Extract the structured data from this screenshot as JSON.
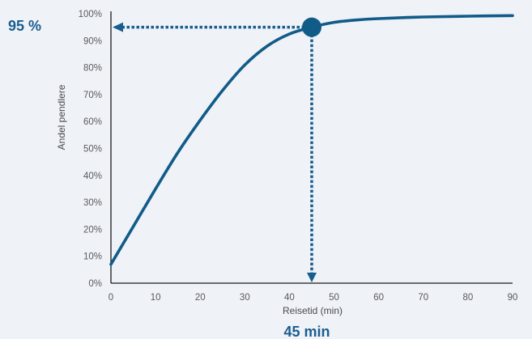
{
  "chart_data": {
    "type": "line",
    "xlabel": "Reisetid (min)",
    "ylabel": "Andel pendlere",
    "xlim": [
      0,
      90
    ],
    "ylim": [
      0,
      100
    ],
    "x_ticks": [
      "0",
      "10",
      "20",
      "30",
      "40",
      "50",
      "60",
      "70",
      "80",
      "90"
    ],
    "y_ticks": [
      "0%",
      "10%",
      "20%",
      "30%",
      "40%",
      "50%",
      "60%",
      "70%",
      "80%",
      "90%",
      "100%"
    ],
    "series": [
      {
        "x": [
          0,
          5,
          10,
          15,
          20,
          25,
          30,
          35,
          40,
          45,
          50,
          55,
          60,
          70,
          80,
          90
        ],
        "y": [
          7,
          21,
          35,
          48.5,
          60.5,
          71.5,
          81,
          88,
          92.5,
          95,
          96.8,
          97.7,
          98.2,
          98.8,
          99.1,
          99.3
        ]
      }
    ],
    "highlight": {
      "x": 45,
      "y": 95
    },
    "annotations": {
      "y_callout": "95 %",
      "x_callout": "45 min"
    },
    "colors": {
      "line": "#115b89",
      "callout": "#1a5e8f",
      "axis": "#1a1a1a"
    },
    "grid": false
  }
}
